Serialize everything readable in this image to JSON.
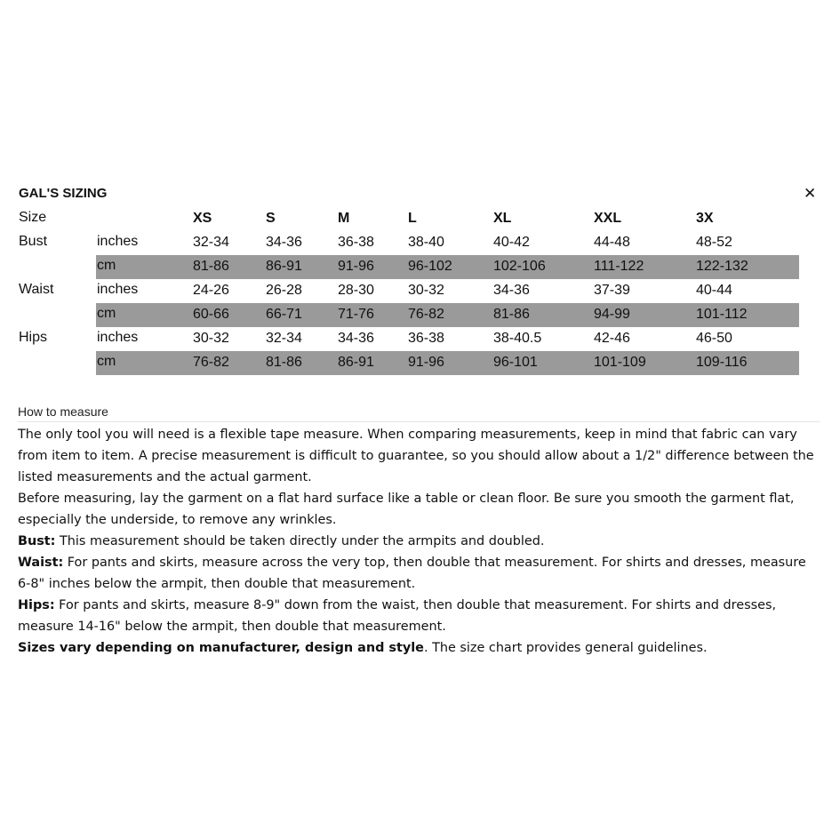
{
  "title": "GAL'S SIZING",
  "close_icon": "close-icon",
  "table": {
    "size_label": "Size",
    "sizes": [
      "XS",
      "S",
      "M",
      "L",
      "XL",
      "XXL",
      "3X"
    ],
    "rows": [
      {
        "measure": "Bust",
        "unit": "inches",
        "values": [
          "32-34",
          "34-36",
          "36-38",
          "38-40",
          "40-42",
          "44-48",
          "48-52"
        ]
      },
      {
        "measure": "",
        "unit": "cm",
        "values": [
          "81-86",
          "86-91",
          "91-96",
          "96-102",
          "102-106",
          "111-122",
          "122-132"
        ]
      },
      {
        "measure": "Waist",
        "unit": "inches",
        "values": [
          "24-26",
          "26-28",
          "28-30",
          "30-32",
          "34-36",
          "37-39",
          "40-44"
        ]
      },
      {
        "measure": "",
        "unit": "cm",
        "values": [
          "60-66",
          "66-71",
          "71-76",
          "76-82",
          "81-86",
          "94-99",
          "101-112"
        ]
      },
      {
        "measure": "Hips",
        "unit": "inches",
        "values": [
          "30-32",
          "32-34",
          "34-36",
          "36-38",
          "38-40.5",
          "42-46",
          "46-50"
        ]
      },
      {
        "measure": "",
        "unit": "cm",
        "values": [
          "76-82",
          "81-86",
          "86-91",
          "91-96",
          "96-101",
          "101-109",
          "109-116"
        ]
      }
    ],
    "band_color": "#9a9a9a"
  },
  "how_to": {
    "heading": "How to measure",
    "paragraphs": [
      {
        "bold": "",
        "text": "The only tool you will need is a flexible tape measure. When comparing measurements, keep in mind that fabric can vary from item to item. A precise measurement is difficult to guarantee, so you should allow about a 1/2\" difference between the listed measurements and the actual garment."
      },
      {
        "bold": "",
        "text": "Before measuring, lay the garment on a flat hard surface like a table or clean floor. Be sure you smooth the garment flat, especially the underside, to remove any wrinkles."
      },
      {
        "bold": "Bust:",
        "text": " This measurement should be taken directly under the armpits and doubled."
      },
      {
        "bold": "Waist:",
        "text": " For pants and skirts, measure across the very top, then double that measurement. For shirts and dresses, measure 6-8\" inches below the armpit, then double that measurement."
      },
      {
        "bold": "Hips:",
        "text": " For pants and skirts, measure 8-9\" down from the waist, then double that measurement. For shirts and dresses, measure 14-16\" below the armpit, then double that measurement."
      },
      {
        "bold": "Sizes vary depending on manufacturer, design and style",
        "text": ". The size chart provides general guidelines."
      }
    ]
  }
}
